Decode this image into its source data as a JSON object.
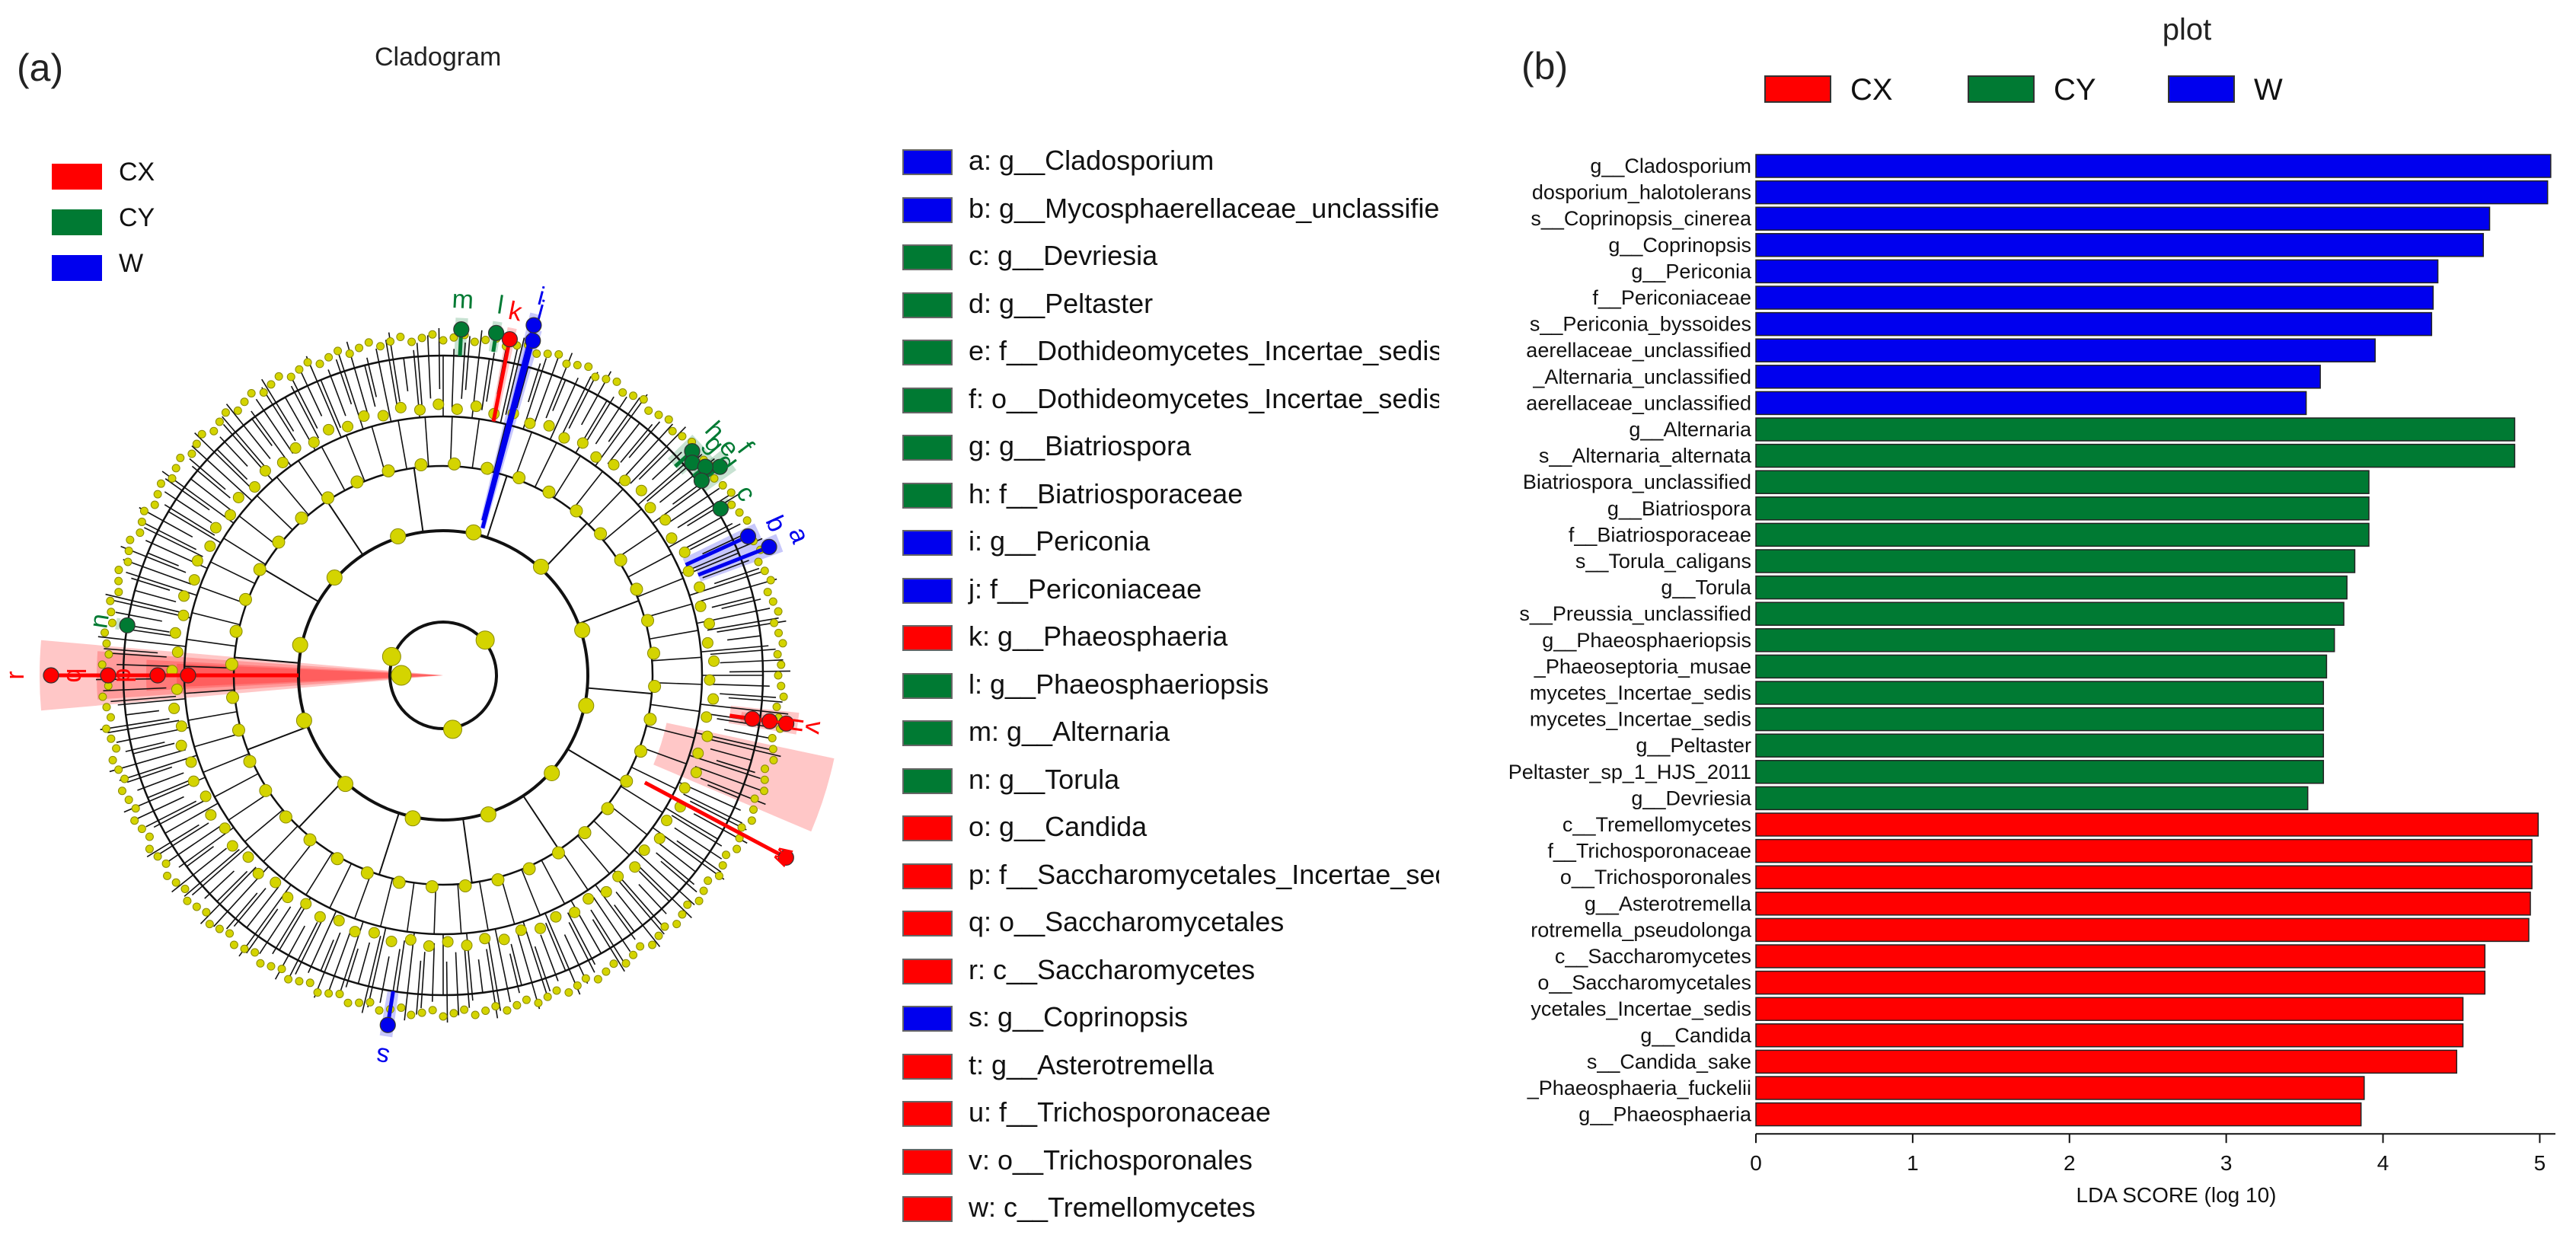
{
  "panel_a_label": "(a)",
  "panel_b_label": "(b)",
  "cladogram": {
    "title": "Cladogram",
    "groups": [
      {
        "name": "CX",
        "color": "#ff0000"
      },
      {
        "name": "CY",
        "color": "#007a33"
      },
      {
        "name": "W",
        "color": "#0000ee"
      }
    ],
    "node_color": "#d4d400",
    "sectors": [
      {
        "letter": "w",
        "group": "CX"
      },
      {
        "letter": "r",
        "group": "CX"
      },
      {
        "letter": "q",
        "group": "CX"
      },
      {
        "letter": "p",
        "group": "CX"
      },
      {
        "letter": "o",
        "group": "CX"
      },
      {
        "letter": "v",
        "group": "CX"
      },
      {
        "letter": "u",
        "group": "CX"
      },
      {
        "letter": "t",
        "group": "CX"
      },
      {
        "letter": "k",
        "group": "CX"
      },
      {
        "letter": "n",
        "group": "CY"
      },
      {
        "letter": "m",
        "group": "CY"
      },
      {
        "letter": "l",
        "group": "CY"
      },
      {
        "letter": "h",
        "group": "CY"
      },
      {
        "letter": "g",
        "group": "CY"
      },
      {
        "letter": "f",
        "group": "CY"
      },
      {
        "letter": "e",
        "group": "CY"
      },
      {
        "letter": "d",
        "group": "CY"
      },
      {
        "letter": "c",
        "group": "CY"
      },
      {
        "letter": "j",
        "group": "W"
      },
      {
        "letter": "i",
        "group": "W"
      },
      {
        "letter": "b",
        "group": "W"
      },
      {
        "letter": "a",
        "group": "W"
      },
      {
        "letter": "s",
        "group": "W"
      }
    ]
  },
  "taxa_legend": [
    {
      "label": "a: g__Cladosporium",
      "group": "W"
    },
    {
      "label": "b: g__Mycosphaerellaceae_unclassified",
      "group": "W"
    },
    {
      "label": "c: g__Devriesia",
      "group": "CY"
    },
    {
      "label": "d: g__Peltaster",
      "group": "CY"
    },
    {
      "label": "e: f__Dothideomycetes_Incertae_sedis",
      "group": "CY"
    },
    {
      "label": "f: o__Dothideomycetes_Incertae_sedis",
      "group": "CY"
    },
    {
      "label": "g: g__Biatriospora",
      "group": "CY"
    },
    {
      "label": "h: f__Biatriosporaceae",
      "group": "CY"
    },
    {
      "label": "i: g__Periconia",
      "group": "W"
    },
    {
      "label": "j: f__Periconiaceae",
      "group": "W"
    },
    {
      "label": "k: g__Phaeosphaeria",
      "group": "CX"
    },
    {
      "label": "l: g__Phaeosphaeriopsis",
      "group": "CY"
    },
    {
      "label": "m: g__Alternaria",
      "group": "CY"
    },
    {
      "label": "n: g__Torula",
      "group": "CY"
    },
    {
      "label": "o: g__Candida",
      "group": "CX"
    },
    {
      "label": "p: f__Saccharomycetales_Incertae_sedis",
      "group": "CX"
    },
    {
      "label": "q: o__Saccharomycetales",
      "group": "CX"
    },
    {
      "label": "r: c__Saccharomycetes",
      "group": "CX"
    },
    {
      "label": "s: g__Coprinopsis",
      "group": "W"
    },
    {
      "label": "t: g__Asterotremella",
      "group": "CX"
    },
    {
      "label": "u: f__Trichosporonaceae",
      "group": "CX"
    },
    {
      "label": "v: o__Trichosporonales",
      "group": "CX"
    },
    {
      "label": "w: c__Tremellomycetes",
      "group": "CX"
    }
  ],
  "chart_data": {
    "type": "bar",
    "orientation": "horizontal",
    "title": "plot",
    "xlabel": "LDA SCORE (log 10)",
    "ylabel": "",
    "xlim": [
      0,
      5.1
    ],
    "xticks": [
      0,
      1,
      2,
      3,
      4,
      5
    ],
    "legend": [
      "CX",
      "CY",
      "W"
    ],
    "legend_position": "top",
    "group_colors": {
      "CX": "#ff0000",
      "CY": "#007a33",
      "W": "#0000ee"
    },
    "bars": [
      {
        "label": "g__Cladosporium",
        "value": 5.07,
        "group": "W"
      },
      {
        "label": "dosporium_halotolerans",
        "value": 5.05,
        "group": "W"
      },
      {
        "label": "s__Coprinopsis_cinerea",
        "value": 4.68,
        "group": "W"
      },
      {
        "label": "g__Coprinopsis",
        "value": 4.64,
        "group": "W"
      },
      {
        "label": "g__Periconia",
        "value": 4.35,
        "group": "W"
      },
      {
        "label": "f__Periconiaceae",
        "value": 4.32,
        "group": "W"
      },
      {
        "label": "s__Periconia_byssoides",
        "value": 4.31,
        "group": "W"
      },
      {
        "label": "aerellaceae_unclassified",
        "value": 3.95,
        "group": "W"
      },
      {
        "label": "_Alternaria_unclassified",
        "value": 3.6,
        "group": "W"
      },
      {
        "label": "aerellaceae_unclassified",
        "value": 3.51,
        "group": "W"
      },
      {
        "label": "g__Alternaria",
        "value": 4.84,
        "group": "CY"
      },
      {
        "label": "s__Alternaria_alternata",
        "value": 4.84,
        "group": "CY"
      },
      {
        "label": "Biatriospora_unclassified",
        "value": 3.91,
        "group": "CY"
      },
      {
        "label": "g__Biatriospora",
        "value": 3.91,
        "group": "CY"
      },
      {
        "label": "f__Biatriosporaceae",
        "value": 3.91,
        "group": "CY"
      },
      {
        "label": "s__Torula_caligans",
        "value": 3.82,
        "group": "CY"
      },
      {
        "label": "g__Torula",
        "value": 3.77,
        "group": "CY"
      },
      {
        "label": "s__Preussia_unclassified",
        "value": 3.75,
        "group": "CY"
      },
      {
        "label": "g__Phaeosphaeriopsis",
        "value": 3.69,
        "group": "CY"
      },
      {
        "label": "_Phaeoseptoria_musae",
        "value": 3.64,
        "group": "CY"
      },
      {
        "label": "mycetes_Incertae_sedis",
        "value": 3.62,
        "group": "CY"
      },
      {
        "label": "mycetes_Incertae_sedis",
        "value": 3.62,
        "group": "CY"
      },
      {
        "label": "g__Peltaster",
        "value": 3.62,
        "group": "CY"
      },
      {
        "label": "Peltaster_sp_1_HJS_2011",
        "value": 3.62,
        "group": "CY"
      },
      {
        "label": "g__Devriesia",
        "value": 3.52,
        "group": "CY"
      },
      {
        "label": "c__Tremellomycetes",
        "value": 4.99,
        "group": "CX"
      },
      {
        "label": "f__Trichosporonaceae",
        "value": 4.95,
        "group": "CX"
      },
      {
        "label": "o__Trichosporonales",
        "value": 4.95,
        "group": "CX"
      },
      {
        "label": "g__Asterotremella",
        "value": 4.94,
        "group": "CX"
      },
      {
        "label": "rotremella_pseudolonga",
        "value": 4.93,
        "group": "CX"
      },
      {
        "label": "c__Saccharomycetes",
        "value": 4.65,
        "group": "CX"
      },
      {
        "label": "o__Saccharomycetales",
        "value": 4.65,
        "group": "CX"
      },
      {
        "label": "ycetales_Incertae_sedis",
        "value": 4.51,
        "group": "CX"
      },
      {
        "label": "g__Candida",
        "value": 4.51,
        "group": "CX"
      },
      {
        "label": "s__Candida_sake",
        "value": 4.47,
        "group": "CX"
      },
      {
        "label": "_Phaeosphaeria_fuckelii",
        "value": 3.88,
        "group": "CX"
      },
      {
        "label": "g__Phaeosphaeria",
        "value": 3.86,
        "group": "CX"
      }
    ]
  }
}
